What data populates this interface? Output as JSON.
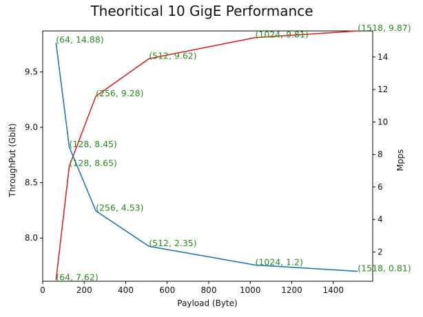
{
  "chart_data": {
    "type": "line",
    "title": "Theoritical 10 GigE Performance",
    "xlabel": "Payload (Byte)",
    "ylabel": "ThroughPut (Gbit)",
    "y2label": "Mpps",
    "xlim": [
      0,
      1590
    ],
    "ylim": [
      7.61,
      9.87
    ],
    "y2lim": [
      0.2,
      15.6
    ],
    "x_ticks": [
      0,
      200,
      400,
      600,
      800,
      1000,
      1200,
      1400
    ],
    "y_ticks": [
      8.0,
      8.5,
      9.0,
      9.5
    ],
    "y_tick_labels": [
      "8.0",
      "8.5",
      "9.0",
      "9.5"
    ],
    "y2_ticks": [
      2,
      4,
      6,
      8,
      10,
      12,
      14
    ],
    "grid": false,
    "series": [
      {
        "axis": "left",
        "color": "#d62728",
        "x": [
          64,
          128,
          256,
          512,
          1024,
          1518
        ],
        "y": [
          7.62,
          8.65,
          9.28,
          9.62,
          9.81,
          9.87
        ],
        "labels": [
          "(64, 7.62)",
          "(128, 8.65)",
          "(256, 9.28)",
          "(512, 9.62)",
          "(1024, 9.81)",
          "(1518, 9.87)"
        ]
      },
      {
        "axis": "right",
        "color": "#1f77b4",
        "x": [
          64,
          128,
          256,
          512,
          1024,
          1518
        ],
        "y": [
          14.88,
          8.45,
          4.53,
          2.35,
          1.2,
          0.81
        ],
        "labels": [
          "(64, 14.88)",
          "(128, 8.45)",
          "(256, 4.53)",
          "(512, 2.35)",
          "(1024, 1.2)",
          "(1518, 0.81)"
        ]
      }
    ],
    "annotation_color": "#2a8a1e"
  }
}
